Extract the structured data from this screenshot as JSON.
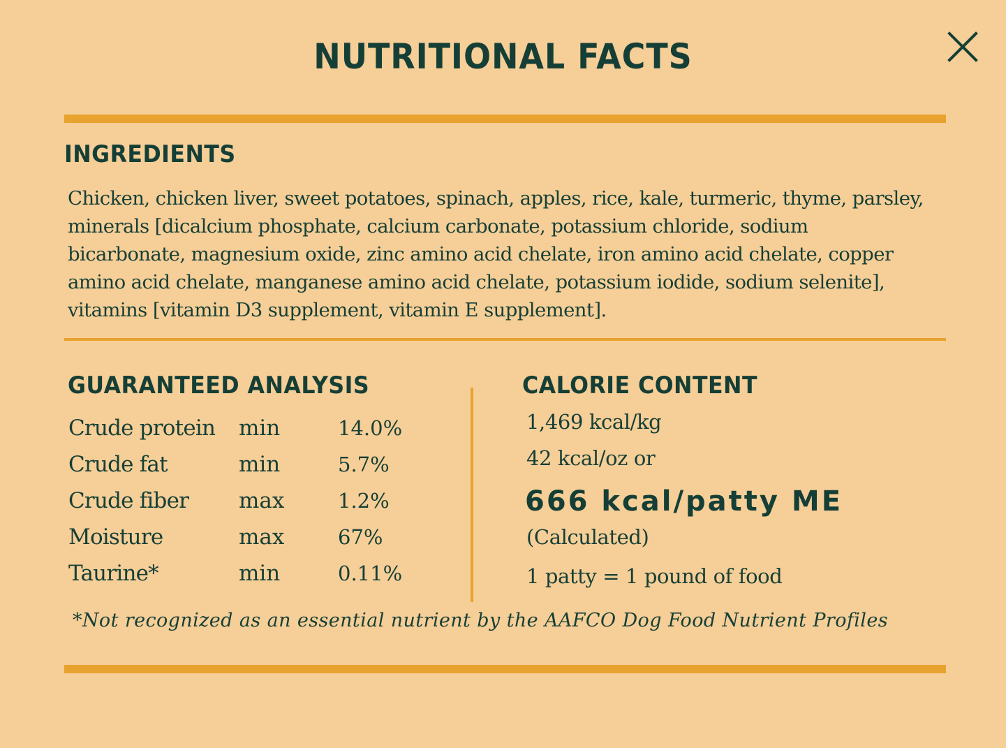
{
  "title": "NUTRITIONAL FACTS",
  "close_icon": "close-icon",
  "colors": {
    "background": "#f6ce97",
    "text": "#153f36",
    "accent_rule": "#e8a22e"
  },
  "ingredients": {
    "heading": "INGREDIENTS",
    "text": "Chicken, chicken liver, sweet potatoes, spinach, apples, rice, kale, turmeric, thyme, parsley, minerals [dicalcium phosphate, calcium carbonate, potassium chloride, sodium bicarbonate, magnesium oxide, zinc amino acid chelate, iron amino acid chelate, copper amino acid chelate, manganese amino acid chelate, potassium iodide, sodium selenite], vitamins [vitamin D3 supplement, vitamin E supplement]."
  },
  "guaranteed_analysis": {
    "heading": "GUARANTEED ANALYSIS",
    "rows": [
      {
        "nutrient": "Crude protein",
        "qualifier": "min",
        "value": "14.0%"
      },
      {
        "nutrient": "Crude fat",
        "qualifier": "min",
        "value": "5.7%"
      },
      {
        "nutrient": "Crude fiber",
        "qualifier": "max",
        "value": "1.2%"
      },
      {
        "nutrient": "Moisture",
        "qualifier": "max",
        "value": "67%"
      },
      {
        "nutrient": "Taurine*",
        "qualifier": "min",
        "value": "0.11%"
      }
    ]
  },
  "calorie_content": {
    "heading": "CALORIE CONTENT",
    "per_kg": "1,469 kcal/kg",
    "per_oz": "42 kcal/oz or",
    "per_patty": "666 kcal/patty ME",
    "calculated": "(Calculated)",
    "patty_note": "1 patty = 1 pound of food"
  },
  "footnote": "*Not recognized as an essential nutrient by the AAFCO Dog Food Nutrient Profiles"
}
